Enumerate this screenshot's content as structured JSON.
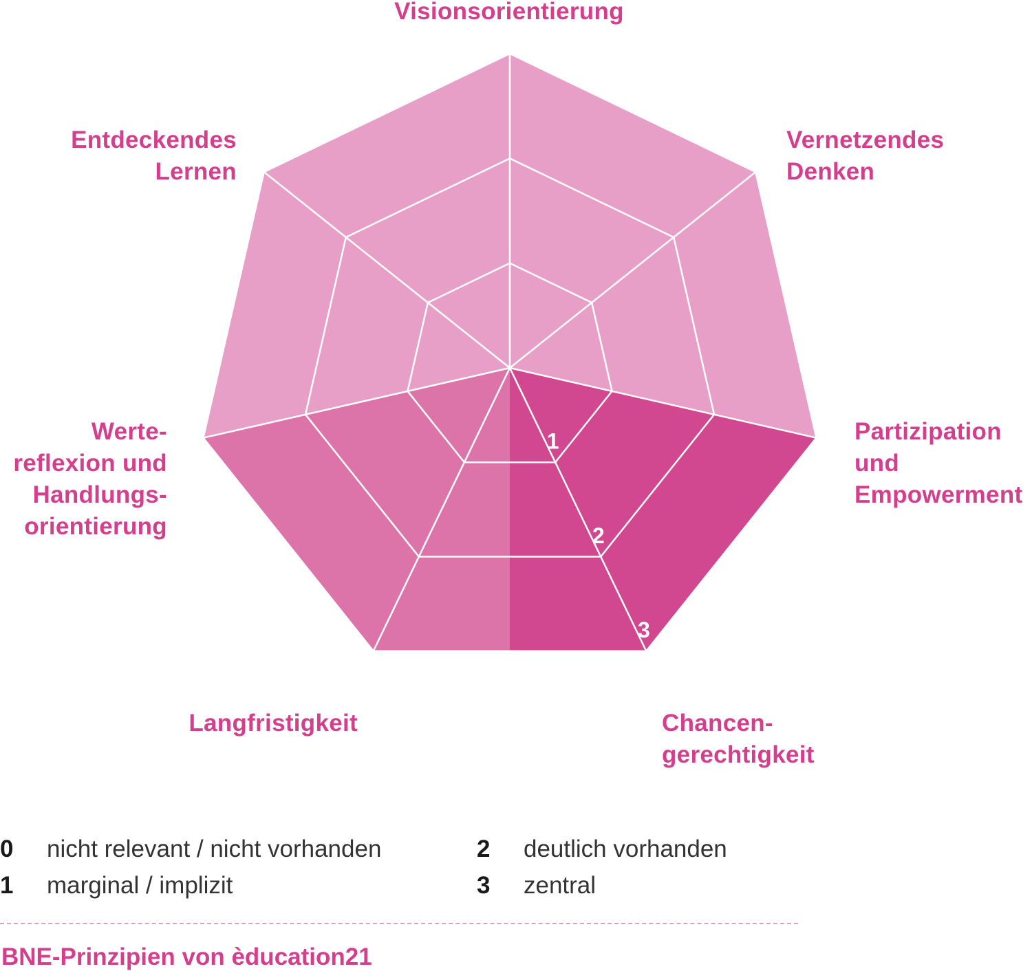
{
  "principles": [
    "Visionsorientierung",
    "Vernetzendes Denken",
    "Partizipation und Empowerment",
    "Chancen-gerechtigkeit",
    "Langfristigkeit",
    "Werte-reflexion und Handlungs-orientierung",
    "Entdeckendes Lernen"
  ],
  "labels": {
    "visionsorientierung": "Visionsorientierung",
    "vernetzendes_denken": "Vernetzendes\nDenken",
    "partizipation": "Partizipation\nund\nEmpowerment",
    "chancengerechtigkeit": "Chancen-\ngerechtigkeit",
    "langfristigkeit": "Langfristigkeit",
    "wertereflexion": "Werte-\nreflexion und\nHandlungs-\norientierung",
    "entdeckendes_lernen": "Entdeckendes\nLernen"
  },
  "scale_labels": [
    "1",
    "2",
    "3"
  ],
  "legend": [
    {
      "value": "0",
      "text": "nicht relevant / nicht vorhanden"
    },
    {
      "value": "1",
      "text": "marginal / implizit"
    },
    {
      "value": "2",
      "text": "deutlich vorhanden"
    },
    {
      "value": "3",
      "text": "zentral"
    }
  ],
  "footer": "BNE-Prinzipien von èducation21",
  "colors": {
    "light": "#e79fc7",
    "medium": "#dc74aa",
    "dark": "#d14790",
    "text_accent": "#d33f8d",
    "grid": "#ffffff"
  }
}
